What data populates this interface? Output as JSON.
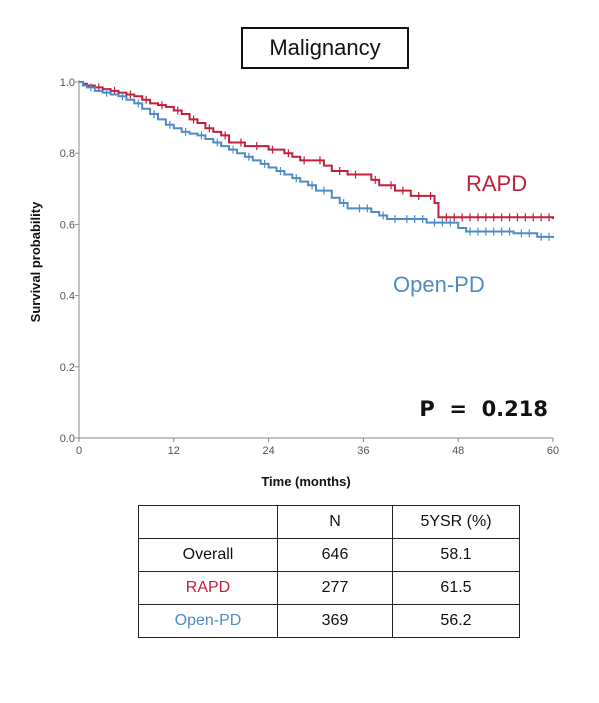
{
  "colors": {
    "RAPD": "#c0203a",
    "Open-PD": "#4f8bc6",
    "axis": "#888888",
    "text": "#111111"
  },
  "chart_data": {
    "type": "line",
    "subtype": "kaplan-meier",
    "title": "Malignancy",
    "xlabel": "Time (months)",
    "ylabel": "Survival probability",
    "xlim": [
      0,
      60
    ],
    "ylim": [
      0,
      1
    ],
    "xticks": [
      0,
      12,
      24,
      36,
      48,
      60
    ],
    "yticks": [
      0.0,
      0.2,
      0.4,
      0.6,
      0.8,
      1.0
    ],
    "xtick_labels": [
      "0",
      "12",
      "24",
      "36",
      "48",
      "60"
    ],
    "ytick_labels": [
      "0.0",
      "0.2",
      "0.4",
      "0.6",
      "0.8",
      "1.0"
    ],
    "grid": false,
    "series": [
      {
        "name": "RAPD",
        "label_position": "right of curve",
        "steps": [
          [
            0,
            1.0
          ],
          [
            0.5,
            0.995
          ],
          [
            1,
            0.99
          ],
          [
            2,
            0.985
          ],
          [
            3,
            0.98
          ],
          [
            4,
            0.975
          ],
          [
            5,
            0.97
          ],
          [
            6,
            0.965
          ],
          [
            7,
            0.96
          ],
          [
            8,
            0.95
          ],
          [
            9,
            0.94
          ],
          [
            10,
            0.935
          ],
          [
            11,
            0.93
          ],
          [
            12,
            0.92
          ],
          [
            13,
            0.91
          ],
          [
            14,
            0.895
          ],
          [
            15,
            0.885
          ],
          [
            16,
            0.87
          ],
          [
            17,
            0.86
          ],
          [
            18,
            0.85
          ],
          [
            19,
            0.83
          ],
          [
            21,
            0.82
          ],
          [
            24,
            0.81
          ],
          [
            26,
            0.8
          ],
          [
            27,
            0.79
          ],
          [
            28,
            0.78
          ],
          [
            31,
            0.765
          ],
          [
            32,
            0.75
          ],
          [
            34,
            0.74
          ],
          [
            37,
            0.725
          ],
          [
            38,
            0.71
          ],
          [
            40,
            0.695
          ],
          [
            42,
            0.68
          ],
          [
            45,
            0.66
          ],
          [
            45.5,
            0.62
          ],
          [
            60,
            0.615
          ]
        ],
        "censor_x": [
          2.5,
          4.5,
          6.5,
          8.5,
          10.5,
          12.5,
          14.5,
          16.5,
          18.5,
          20.5,
          22.5,
          24.5,
          26.5,
          28.5,
          30.5,
          33,
          35,
          37.5,
          39.5,
          41,
          43,
          44.5,
          46.5,
          47.5,
          48.5,
          49.5,
          50.5,
          51.5,
          52.5,
          53.5,
          54.5,
          55.5,
          56.5,
          57.5,
          58.5,
          59.5
        ]
      },
      {
        "name": "Open-PD",
        "label_position": "below curves",
        "steps": [
          [
            0,
            1.0
          ],
          [
            0.5,
            0.99
          ],
          [
            1,
            0.985
          ],
          [
            2,
            0.975
          ],
          [
            3,
            0.97
          ],
          [
            4,
            0.965
          ],
          [
            5,
            0.96
          ],
          [
            6,
            0.95
          ],
          [
            7,
            0.94
          ],
          [
            8,
            0.925
          ],
          [
            9,
            0.91
          ],
          [
            10,
            0.895
          ],
          [
            11,
            0.88
          ],
          [
            12,
            0.87
          ],
          [
            13,
            0.86
          ],
          [
            14,
            0.855
          ],
          [
            15,
            0.85
          ],
          [
            16,
            0.84
          ],
          [
            17,
            0.83
          ],
          [
            18,
            0.82
          ],
          [
            19,
            0.81
          ],
          [
            20,
            0.8
          ],
          [
            21,
            0.79
          ],
          [
            22,
            0.78
          ],
          [
            23,
            0.77
          ],
          [
            24,
            0.76
          ],
          [
            25,
            0.75
          ],
          [
            26,
            0.74
          ],
          [
            27,
            0.73
          ],
          [
            28,
            0.72
          ],
          [
            29,
            0.71
          ],
          [
            30,
            0.695
          ],
          [
            32,
            0.675
          ],
          [
            33,
            0.66
          ],
          [
            34,
            0.645
          ],
          [
            37,
            0.635
          ],
          [
            38,
            0.625
          ],
          [
            39,
            0.615
          ],
          [
            44,
            0.605
          ],
          [
            48,
            0.59
          ],
          [
            49,
            0.58
          ],
          [
            55,
            0.575
          ],
          [
            58,
            0.565
          ],
          [
            60,
            0.562
          ]
        ],
        "censor_x": [
          1.5,
          3.5,
          5.5,
          7.5,
          9.5,
          11.5,
          13.5,
          15.5,
          17.5,
          19.5,
          21.5,
          23.5,
          25.5,
          27.5,
          29.5,
          31,
          33.5,
          35.5,
          36.5,
          38.5,
          40,
          41.5,
          42.5,
          43.5,
          45,
          46,
          47,
          49.5,
          50.5,
          51.5,
          52.5,
          53.5,
          54.5,
          56,
          57,
          58.5,
          59.5
        ]
      }
    ],
    "annotation": "P  =  0.218"
  },
  "table": {
    "headers": [
      "",
      "N",
      "5YSR  (%)"
    ],
    "rows": [
      {
        "label": "Overall",
        "n": "646",
        "ysr": "58.1"
      },
      {
        "label": "RAPD",
        "n": "277",
        "ysr": "61.5"
      },
      {
        "label": "Open-PD",
        "n": "369",
        "ysr": "56.2"
      }
    ]
  }
}
